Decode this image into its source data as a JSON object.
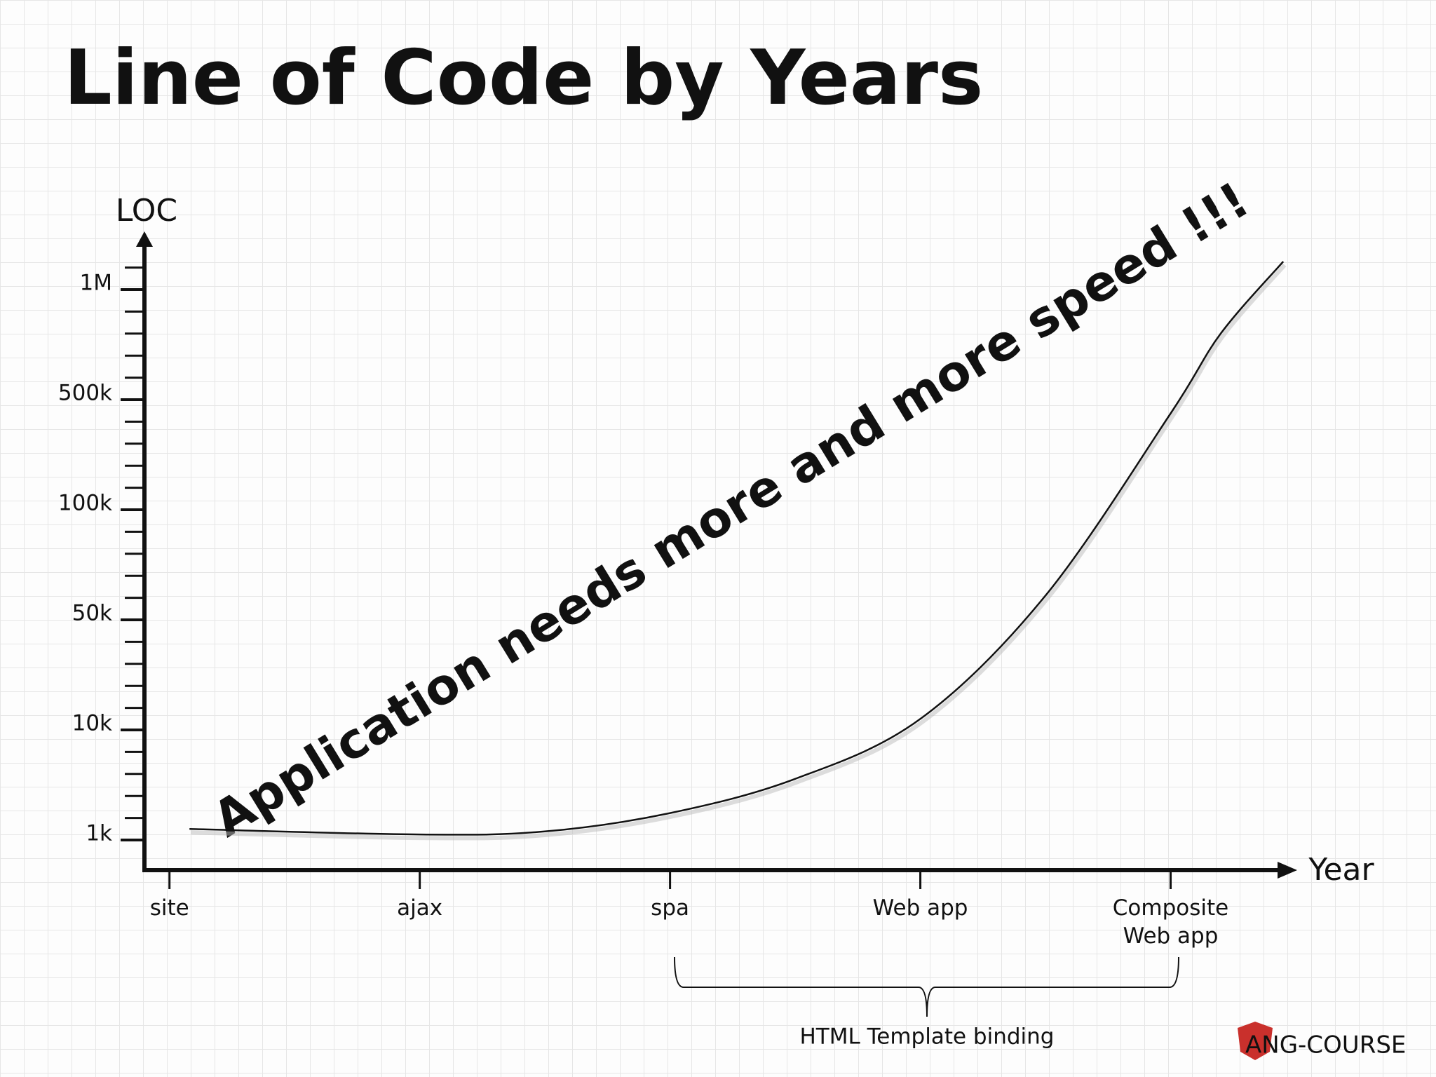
{
  "chart_data": {
    "type": "line",
    "title": "Line of Code by Years",
    "y_label": "LOC",
    "x_label": "Year",
    "annotation": "Application needs more and more speed !!!",
    "bracket_label": "HTML Template binding",
    "logo": "ANG-COURSE",
    "xlim": [
      -0.1,
      4.5
    ],
    "xticks": [
      {
        "value": 0,
        "label": "site"
      },
      {
        "value": 1,
        "label": "ajax"
      },
      {
        "value": 2,
        "label": "spa"
      },
      {
        "value": 3,
        "label": "Web app"
      },
      {
        "value": 4,
        "label": "Composite Web app"
      }
    ],
    "ylim": [
      0,
      1300000
    ],
    "yticks": [
      {
        "value": 1000,
        "label": "1k"
      },
      {
        "value": 10000,
        "label": "10k"
      },
      {
        "value": 50000,
        "label": "50k"
      },
      {
        "value": 100000,
        "label": "100k"
      },
      {
        "value": 500000,
        "label": "500k"
      },
      {
        "value": 1000000,
        "label": "1M"
      }
    ],
    "x": [
      0.08,
      1,
      1.5,
      2,
      2.5,
      3,
      3.5,
      4,
      4.2,
      4.45
    ],
    "series": [
      {
        "color": "#111111",
        "values": [
          1900,
          1450,
          1700,
          3200,
          6000,
          14000,
          61000,
          450000,
          800000,
          1150000
        ]
      }
    ]
  }
}
